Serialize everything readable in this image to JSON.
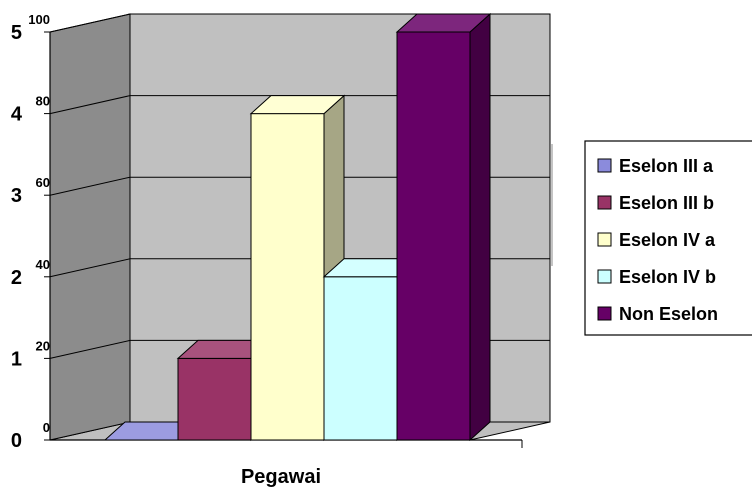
{
  "chart_data": {
    "type": "bar",
    "title": "",
    "xlabel": "Pegawai",
    "ylabel": "",
    "ylim": [
      0,
      5
    ],
    "y_ticks": [
      0,
      1,
      2,
      3,
      4,
      5
    ],
    "secondary_tick_labels": [
      "0",
      "20",
      "40",
      "60",
      "80",
      "100"
    ],
    "categories": [
      "Pegawai"
    ],
    "grid": true,
    "legend_position": "right",
    "series": [
      {
        "name": "Eselon III a",
        "values": [
          0
        ],
        "color": "#8b8bdc"
      },
      {
        "name": "Eselon III b",
        "values": [
          1
        ],
        "color": "#993366"
      },
      {
        "name": "Eselon IV a",
        "values": [
          4
        ],
        "color": "#ffffcc"
      },
      {
        "name": "Eselon IV b",
        "values": [
          2
        ],
        "color": "#ccffff"
      },
      {
        "name": "Non Eselon",
        "values": [
          5
        ],
        "color": "#660066"
      }
    ]
  }
}
